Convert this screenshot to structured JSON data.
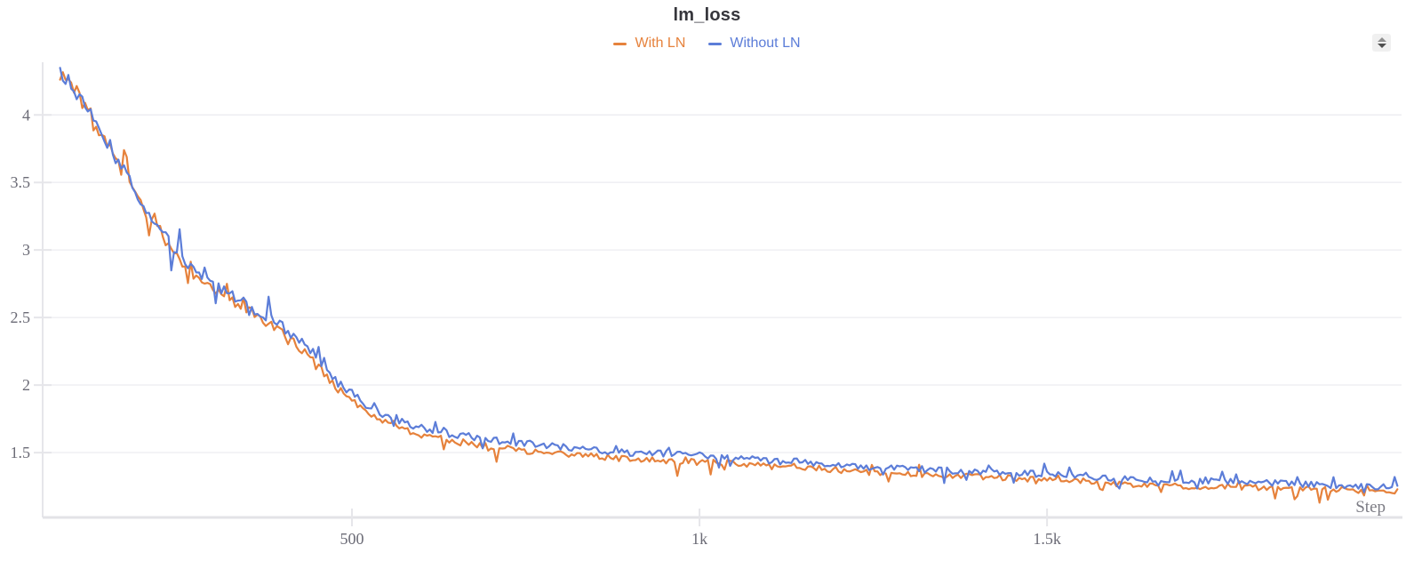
{
  "chart_data": {
    "type": "line",
    "title": "lm_loss",
    "xlabel": "Step",
    "x_domain": [
      55,
      2010
    ],
    "y_domain": [
      1.02,
      4.39
    ],
    "grid": "horizontal-only",
    "legend_position": "top-center",
    "x_ticks": [
      {
        "value": 500,
        "label": "500"
      },
      {
        "value": 1000,
        "label": "1k"
      },
      {
        "value": 1500,
        "label": "1.5k"
      }
    ],
    "y_ticks": [
      {
        "value": 1.5,
        "label": "1.5"
      },
      {
        "value": 2,
        "label": "2"
      },
      {
        "value": 2.5,
        "label": "2.5"
      },
      {
        "value": 3,
        "label": "3"
      },
      {
        "value": 3.5,
        "label": "3.5"
      },
      {
        "value": 4,
        "label": "4"
      }
    ],
    "sample_step": 4,
    "series": [
      {
        "name": "With LN",
        "color": "#E6823C",
        "seed": 7,
        "noise": {
          "base": 0.02,
          "prop": 0.013,
          "dip_chance": 0.05,
          "dip_scale": 3.0,
          "spike_chance": 0.04,
          "spike_scale": 2.0
        },
        "trend": [
          [
            80,
            4.32
          ],
          [
            100,
            4.18
          ],
          [
            120,
            4.03
          ],
          [
            140,
            3.86
          ],
          [
            160,
            3.66
          ],
          [
            180,
            3.5
          ],
          [
            200,
            3.32
          ],
          [
            220,
            3.15
          ],
          [
            240,
            3.0
          ],
          [
            260,
            2.88
          ],
          [
            280,
            2.77
          ],
          [
            300,
            2.71
          ],
          [
            320,
            2.64
          ],
          [
            340,
            2.58
          ],
          [
            360,
            2.52
          ],
          [
            380,
            2.45
          ],
          [
            400,
            2.38
          ],
          [
            420,
            2.3
          ],
          [
            440,
            2.21
          ],
          [
            460,
            2.09
          ],
          [
            480,
            1.97
          ],
          [
            500,
            1.88
          ],
          [
            520,
            1.8
          ],
          [
            540,
            1.75
          ],
          [
            560,
            1.71
          ],
          [
            580,
            1.67
          ],
          [
            600,
            1.63
          ],
          [
            640,
            1.59
          ],
          [
            680,
            1.56
          ],
          [
            720,
            1.53
          ],
          [
            760,
            1.51
          ],
          [
            800,
            1.49
          ],
          [
            850,
            1.47
          ],
          [
            900,
            1.45
          ],
          [
            950,
            1.44
          ],
          [
            1000,
            1.43
          ],
          [
            1050,
            1.42
          ],
          [
            1100,
            1.4
          ],
          [
            1150,
            1.39
          ],
          [
            1200,
            1.37
          ],
          [
            1250,
            1.35
          ],
          [
            1300,
            1.34
          ],
          [
            1350,
            1.33
          ],
          [
            1400,
            1.32
          ],
          [
            1450,
            1.31
          ],
          [
            1500,
            1.3
          ],
          [
            1550,
            1.29
          ],
          [
            1600,
            1.27
          ],
          [
            1650,
            1.26
          ],
          [
            1700,
            1.25
          ],
          [
            1750,
            1.245
          ],
          [
            1800,
            1.24
          ],
          [
            1850,
            1.235
          ],
          [
            1900,
            1.23
          ],
          [
            1950,
            1.22
          ],
          [
            2005,
            1.215
          ]
        ]
      },
      {
        "name": "Without LN",
        "color": "#5C7DD8",
        "seed": 13,
        "noise": {
          "base": 0.022,
          "prop": 0.013,
          "dip_chance": 0.035,
          "dip_scale": 2.6,
          "spike_chance": 0.06,
          "spike_scale": 2.2
        },
        "trend": [
          [
            80,
            4.34
          ],
          [
            100,
            4.19
          ],
          [
            120,
            4.05
          ],
          [
            140,
            3.88
          ],
          [
            160,
            3.68
          ],
          [
            180,
            3.52
          ],
          [
            200,
            3.34
          ],
          [
            220,
            3.18
          ],
          [
            240,
            3.04
          ],
          [
            260,
            2.92
          ],
          [
            280,
            2.81
          ],
          [
            300,
            2.75
          ],
          [
            320,
            2.68
          ],
          [
            340,
            2.62
          ],
          [
            360,
            2.56
          ],
          [
            380,
            2.5
          ],
          [
            400,
            2.43
          ],
          [
            420,
            2.35
          ],
          [
            440,
            2.26
          ],
          [
            460,
            2.14
          ],
          [
            480,
            2.02
          ],
          [
            500,
            1.93
          ],
          [
            520,
            1.85
          ],
          [
            540,
            1.8
          ],
          [
            560,
            1.76
          ],
          [
            580,
            1.72
          ],
          [
            600,
            1.68
          ],
          [
            640,
            1.64
          ],
          [
            680,
            1.61
          ],
          [
            720,
            1.58
          ],
          [
            760,
            1.56
          ],
          [
            800,
            1.54
          ],
          [
            850,
            1.52
          ],
          [
            900,
            1.5
          ],
          [
            950,
            1.49
          ],
          [
            1000,
            1.48
          ],
          [
            1050,
            1.46
          ],
          [
            1100,
            1.44
          ],
          [
            1150,
            1.43
          ],
          [
            1200,
            1.41
          ],
          [
            1250,
            1.39
          ],
          [
            1300,
            1.38
          ],
          [
            1350,
            1.37
          ],
          [
            1400,
            1.36
          ],
          [
            1450,
            1.35
          ],
          [
            1500,
            1.34
          ],
          [
            1550,
            1.33
          ],
          [
            1600,
            1.31
          ],
          [
            1650,
            1.3
          ],
          [
            1700,
            1.29
          ],
          [
            1750,
            1.285
          ],
          [
            1800,
            1.28
          ],
          [
            1850,
            1.27
          ],
          [
            1900,
            1.26
          ],
          [
            1950,
            1.25
          ],
          [
            2005,
            1.245
          ]
        ]
      }
    ]
  },
  "ui": {
    "colors": {
      "title": "#36363c",
      "tick_label": "#6b6b76",
      "axis_line": "#e6e6ea",
      "bottom_axis_line": "#e3e3e7",
      "gridline": "#eeeef2",
      "step_label": "#7d7d85",
      "background": "#ffffff"
    }
  }
}
